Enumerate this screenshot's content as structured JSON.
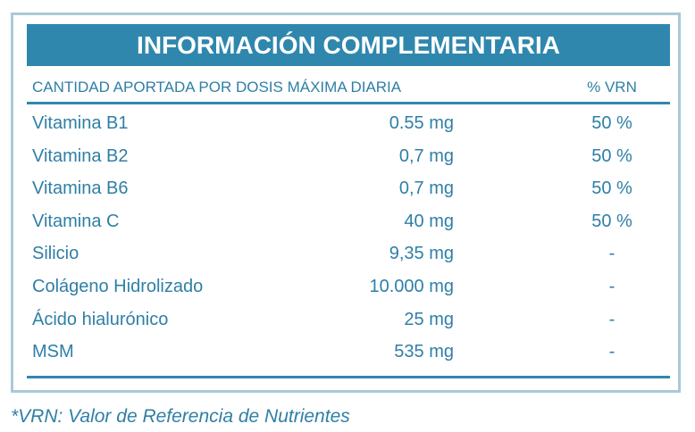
{
  "header": {
    "title": "INFORMACIÓN COMPLEMENTARIA"
  },
  "table": {
    "columns": [
      "CANTIDAD APORTADA POR DOSIS MÁXIMA DIARIA",
      "% VRN"
    ],
    "rows": [
      [
        "Vitamina B1",
        "0.55 mg",
        "50 %"
      ],
      [
        "Vitamina B2",
        "0,7 mg",
        "50 %"
      ],
      [
        "Vitamina B6",
        "0,7 mg",
        "50 %"
      ],
      [
        "Vitamina C",
        "40 mg",
        "50 %"
      ],
      [
        "Silicio",
        "9,35 mg",
        "-"
      ],
      [
        "Colágeno Hidrolizado",
        "10.000 mg",
        "-"
      ],
      [
        "Ácido hialurónico",
        "25 mg",
        "-"
      ],
      [
        "MSM",
        "535 mg",
        "-"
      ]
    ]
  },
  "footnote": "*VRN: Valor de Referencia de Nutrientes"
}
